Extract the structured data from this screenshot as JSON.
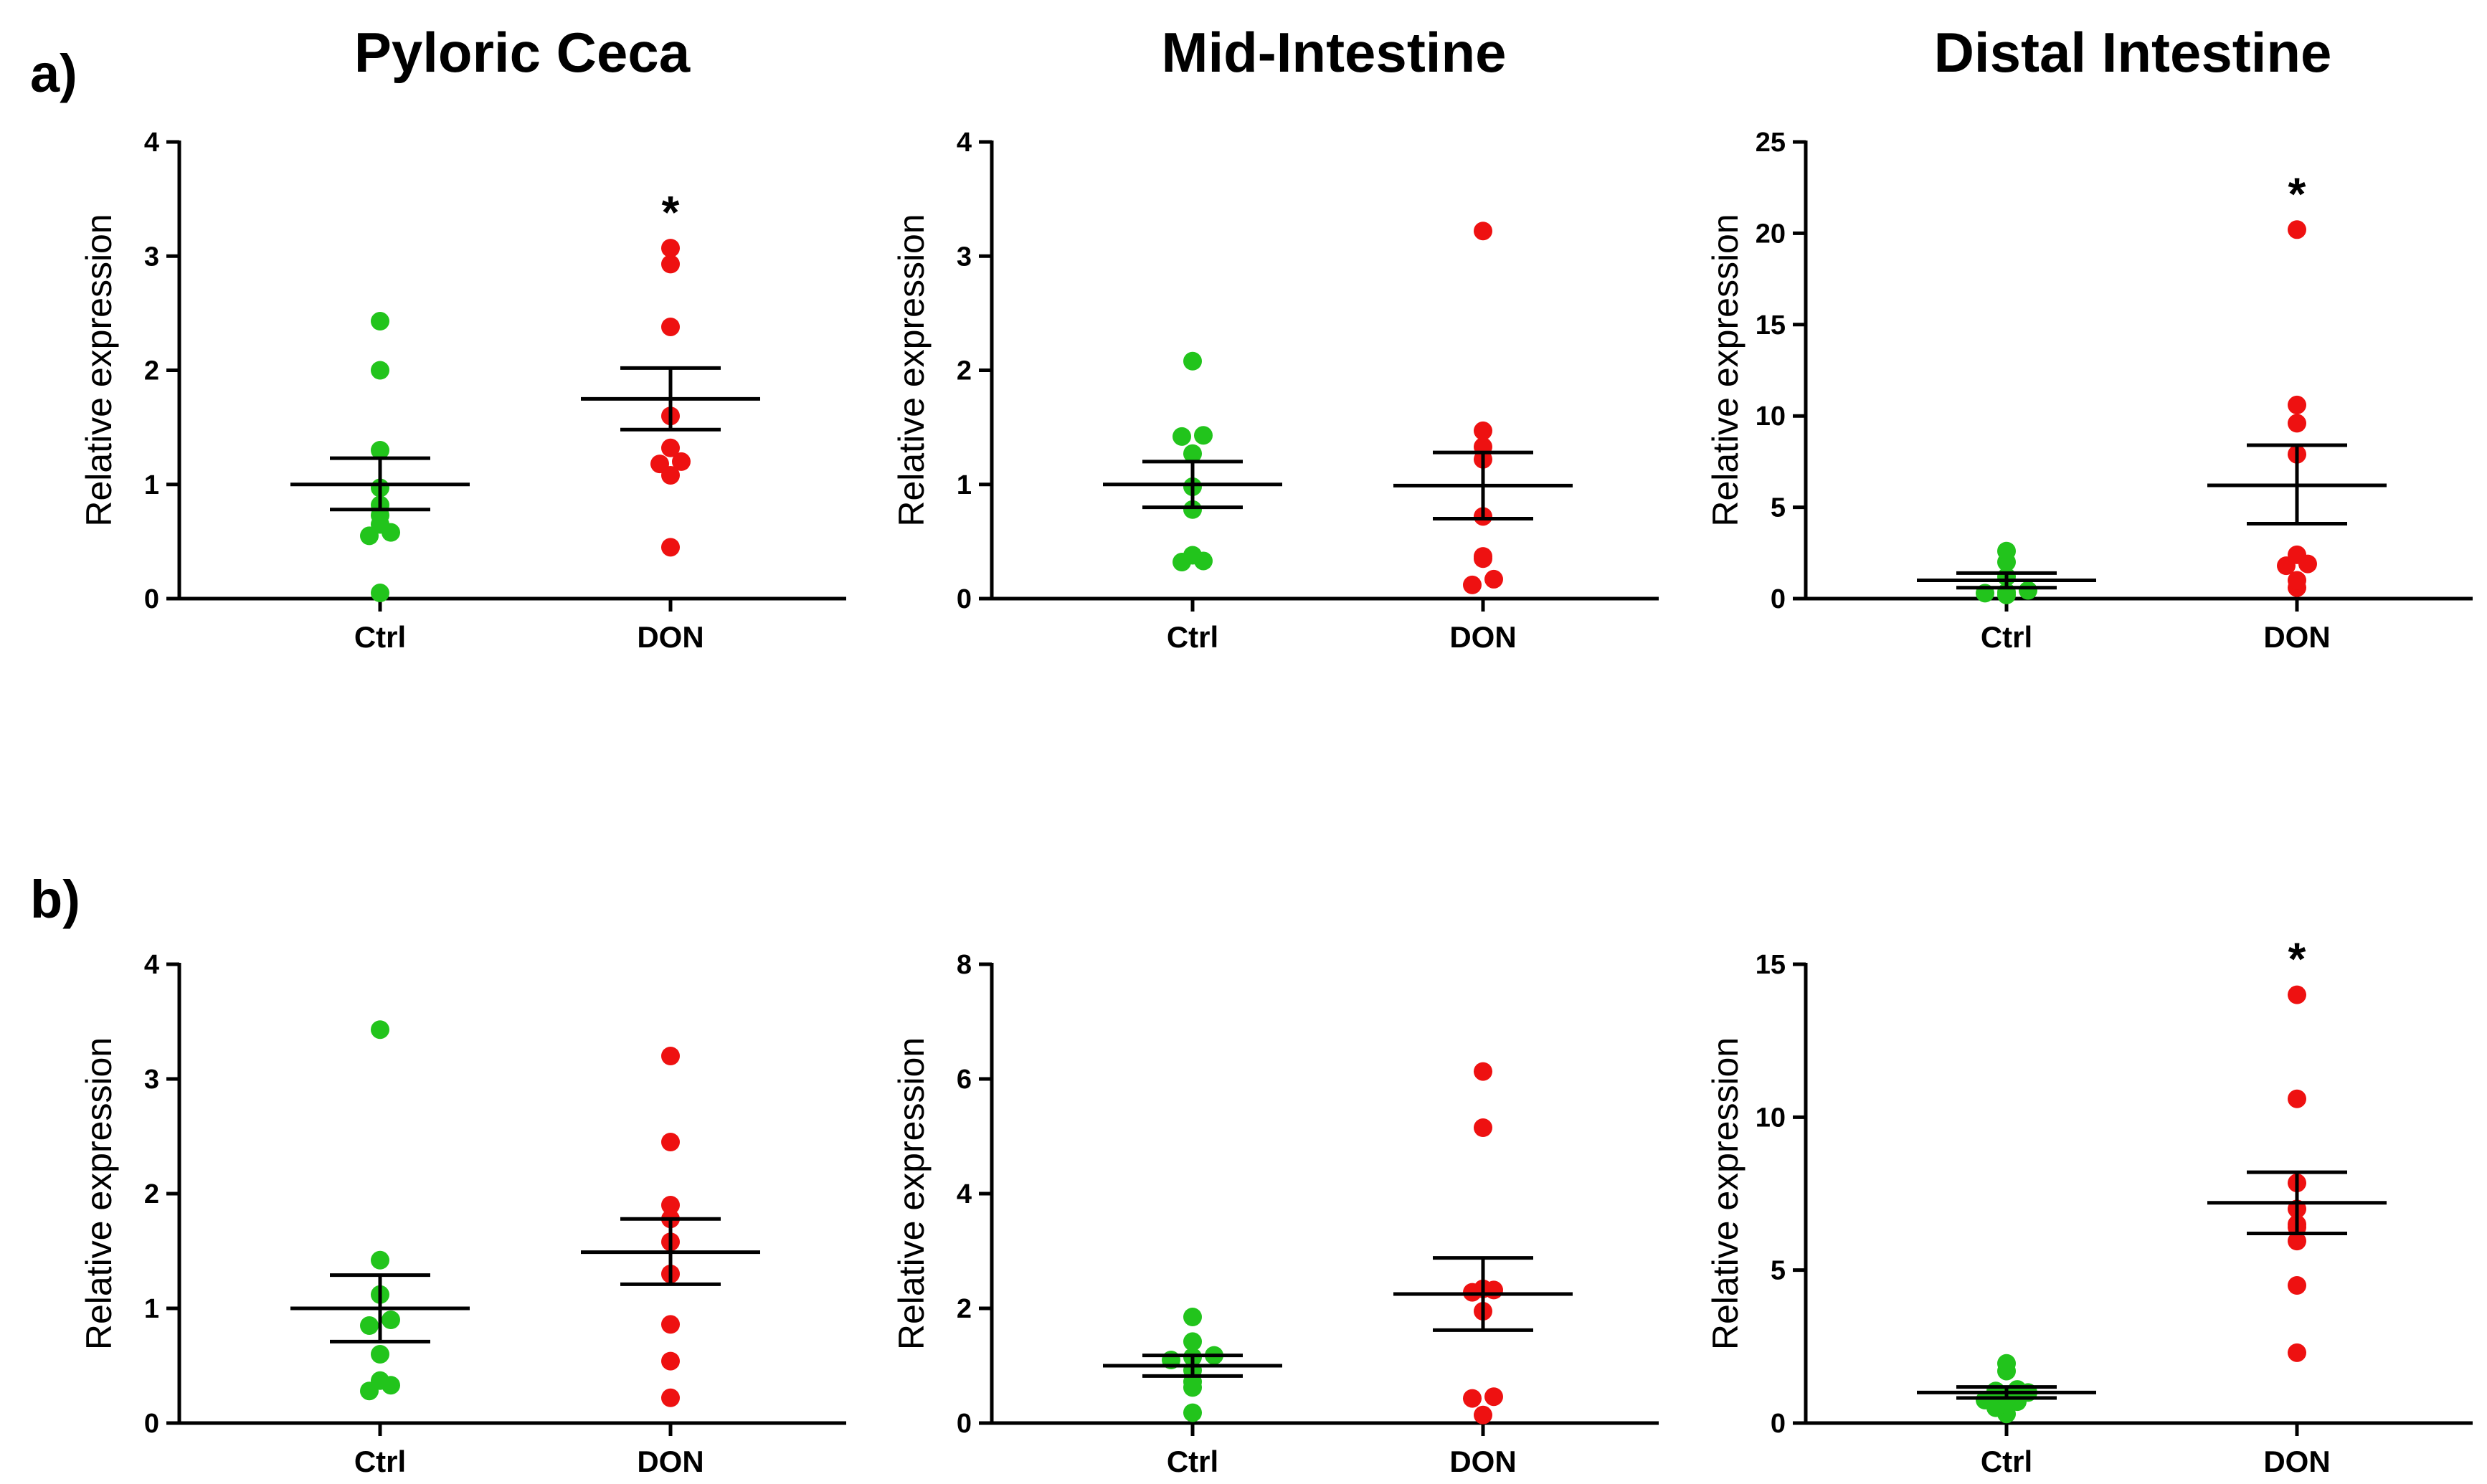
{
  "figure": {
    "column_titles": [
      "Pyloric Ceca",
      "Mid-Intestine",
      "Distal Intestine"
    ],
    "row_labels": [
      "a)",
      "b)"
    ]
  },
  "colors": {
    "Ctrl": "#22c41c",
    "DON": "#ee1111",
    "axis": "#000000"
  },
  "chart_data": [
    {
      "type": "scatter",
      "row": "a)",
      "column": "Pyloric Ceca",
      "ylabel": "Relative expression",
      "ylim": [
        0,
        4
      ],
      "yticks": [
        0,
        1,
        2,
        3,
        4
      ],
      "categories": [
        "Ctrl",
        "DON"
      ],
      "series": [
        {
          "name": "Ctrl",
          "values": [
            0.05,
            0.55,
            0.58,
            0.65,
            0.73,
            0.82,
            0.97,
            1.3,
            2.0,
            2.43
          ],
          "mean": 1.0,
          "sem_low": 0.78,
          "sem_high": 1.23,
          "significant": false
        },
        {
          "name": "DON",
          "values": [
            0.45,
            1.08,
            1.18,
            1.2,
            1.32,
            1.6,
            2.38,
            2.93,
            3.07
          ],
          "mean": 1.75,
          "sem_low": 1.48,
          "sem_high": 2.02,
          "significant": true,
          "annotation": "*"
        }
      ]
    },
    {
      "type": "scatter",
      "row": "a)",
      "column": "Mid-Intestine",
      "ylabel": "Relative expression",
      "ylim": [
        0,
        4
      ],
      "yticks": [
        0,
        1,
        2,
        3,
        4
      ],
      "categories": [
        "Ctrl",
        "DON"
      ],
      "series": [
        {
          "name": "Ctrl",
          "values": [
            0.32,
            0.33,
            0.38,
            0.78,
            0.98,
            1.27,
            1.42,
            1.43,
            2.08
          ],
          "mean": 1.0,
          "sem_low": 0.8,
          "sem_high": 1.2,
          "significant": false
        },
        {
          "name": "DON",
          "values": [
            0.12,
            0.17,
            0.35,
            0.37,
            0.72,
            1.22,
            1.33,
            1.47,
            3.22
          ],
          "mean": 0.99,
          "sem_low": 0.7,
          "sem_high": 1.28,
          "significant": false
        }
      ]
    },
    {
      "type": "scatter",
      "row": "a)",
      "column": "Distal Intestine",
      "ylabel": "Relative expression",
      "ylim": [
        0,
        25
      ],
      "yticks": [
        0,
        5,
        10,
        15,
        20,
        25
      ],
      "categories": [
        "Ctrl",
        "DON"
      ],
      "series": [
        {
          "name": "Ctrl",
          "values": [
            0.2,
            0.3,
            0.35,
            0.45,
            1.2,
            2.0,
            2.6
          ],
          "mean": 1.0,
          "sem_low": 0.6,
          "sem_high": 1.4,
          "significant": false
        },
        {
          "name": "DON",
          "values": [
            0.6,
            1.0,
            1.8,
            1.9,
            2.4,
            7.9,
            9.6,
            10.6,
            20.2
          ],
          "mean": 6.2,
          "sem_low": 4.1,
          "sem_high": 8.4,
          "significant": true,
          "annotation": "*"
        }
      ]
    },
    {
      "type": "scatter",
      "row": "b)",
      "column": "Pyloric Ceca",
      "ylabel": "Relative expression",
      "ylim": [
        0,
        4
      ],
      "yticks": [
        0,
        1,
        2,
        3,
        4
      ],
      "categories": [
        "Ctrl",
        "DON"
      ],
      "series": [
        {
          "name": "Ctrl",
          "values": [
            0.28,
            0.33,
            0.37,
            0.6,
            0.85,
            0.9,
            1.12,
            1.42,
            3.43
          ],
          "mean": 1.0,
          "sem_low": 0.71,
          "sem_high": 1.29,
          "significant": false
        },
        {
          "name": "DON",
          "values": [
            0.22,
            0.54,
            0.86,
            1.3,
            1.58,
            1.78,
            1.9,
            2.45,
            3.2
          ],
          "mean": 1.49,
          "sem_low": 1.21,
          "sem_high": 1.78,
          "significant": false
        }
      ]
    },
    {
      "type": "scatter",
      "row": "b)",
      "column": "Mid-Intestine",
      "ylabel": "Relative expression",
      "ylim": [
        0,
        8
      ],
      "yticks": [
        0,
        2,
        4,
        6,
        8
      ],
      "categories": [
        "Ctrl",
        "DON"
      ],
      "series": [
        {
          "name": "Ctrl",
          "values": [
            0.18,
            0.62,
            0.72,
            0.92,
            1.1,
            1.15,
            1.18,
            1.42,
            1.85
          ],
          "mean": 1.0,
          "sem_low": 0.82,
          "sem_high": 1.18,
          "significant": false
        },
        {
          "name": "DON",
          "values": [
            0.14,
            0.43,
            0.46,
            1.95,
            2.28,
            2.32,
            2.34,
            5.15,
            6.13
          ],
          "mean": 2.25,
          "sem_low": 1.62,
          "sem_high": 2.88,
          "significant": false
        }
      ]
    },
    {
      "type": "scatter",
      "row": "b)",
      "column": "Distal Intestine",
      "ylabel": "Relative expression",
      "ylim": [
        0,
        15
      ],
      "yticks": [
        0,
        5,
        10,
        15
      ],
      "categories": [
        "Ctrl",
        "DON"
      ],
      "series": [
        {
          "name": "Ctrl",
          "values": [
            0.3,
            0.5,
            0.7,
            0.75,
            0.8,
            1.0,
            1.05,
            1.1,
            1.7,
            1.95
          ],
          "mean": 1.0,
          "sem_low": 0.82,
          "sem_high": 1.18,
          "significant": false
        },
        {
          "name": "DON",
          "values": [
            2.3,
            4.5,
            5.95,
            6.4,
            6.5,
            7.0,
            7.85,
            10.6,
            14.0
          ],
          "mean": 7.2,
          "sem_low": 6.2,
          "sem_high": 8.2,
          "significant": true,
          "annotation": "*"
        }
      ]
    }
  ]
}
